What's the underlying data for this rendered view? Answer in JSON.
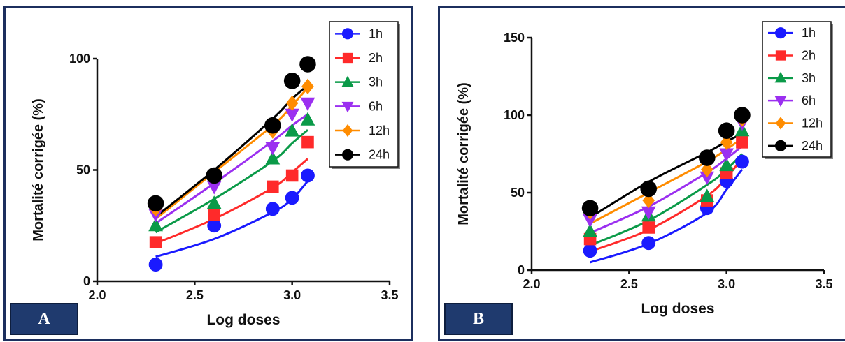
{
  "chart_data": [
    {
      "type": "scatter",
      "panel_label": "A",
      "xlabel": "Log doses",
      "ylabel": "Mortalité corrigée (%)",
      "xlim": [
        2.0,
        3.5
      ],
      "ylim": [
        0,
        100
      ],
      "x_ticks": [
        "2.0",
        "2.5",
        "3.0",
        "3.5"
      ],
      "y_ticks": [
        "0",
        "50",
        "100"
      ],
      "legend_position": "top-right",
      "x": [
        2.3,
        2.6,
        2.9,
        3.0,
        3.08
      ],
      "series": [
        {
          "name": "1h",
          "color": "#1a1aff",
          "marker": "circle",
          "values": [
            7.5,
            25,
            32.5,
            37.5,
            47.5
          ],
          "fit": [
            11,
            19,
            31,
            37,
            45
          ]
        },
        {
          "name": "2h",
          "color": "#ff2a2a",
          "marker": "square",
          "values": [
            17.5,
            30,
            42.5,
            47.5,
            62.5
          ],
          "fit": [
            17,
            28,
            42,
            49,
            55
          ]
        },
        {
          "name": "3h",
          "color": "#0a9a48",
          "marker": "triangle-up",
          "values": [
            25,
            35,
            55,
            67.5,
            72.5
          ],
          "fit": [
            22,
            37,
            54,
            62,
            68
          ]
        },
        {
          "name": "6h",
          "color": "#9b2ff0",
          "marker": "triangle-down",
          "values": [
            30,
            42.5,
            60,
            75,
            80
          ],
          "fit": [
            26,
            44,
            63,
            70,
            75
          ]
        },
        {
          "name": "12h",
          "color": "#ff8c00",
          "marker": "diamond",
          "values": [
            32.5,
            47.5,
            67.5,
            80,
            87.5
          ],
          "fit": [
            28,
            49,
            70,
            79,
            87
          ]
        },
        {
          "name": "24h",
          "color": "#000000",
          "marker": "circle",
          "values": [
            35,
            47.5,
            70,
            90,
            97.5
          ],
          "fit": [
            29,
            50,
            73,
            82,
            88
          ]
        }
      ]
    },
    {
      "type": "scatter",
      "panel_label": "B",
      "xlabel": "Log doses",
      "ylabel": "Mortalité corrigée (%)",
      "xlim": [
        2.0,
        3.5
      ],
      "ylim": [
        0,
        150
      ],
      "x_ticks": [
        "2.0",
        "2.5",
        "3.0",
        "3.5"
      ],
      "y_ticks": [
        "0",
        "50",
        "100",
        "150"
      ],
      "legend_position": "top-right",
      "x": [
        2.3,
        2.6,
        2.9,
        3.0,
        3.08
      ],
      "series": [
        {
          "name": "1h",
          "color": "#1a1aff",
          "marker": "circle",
          "values": [
            12.5,
            17.5,
            40,
            57.5,
            70
          ],
          "fit": [
            5,
            17,
            37,
            52,
            65
          ]
        },
        {
          "name": "2h",
          "color": "#ff2a2a",
          "marker": "square",
          "values": [
            20,
            27.5,
            45,
            62.5,
            82.5
          ],
          "fit": [
            12,
            26,
            48,
            60,
            72
          ]
        },
        {
          "name": "3h",
          "color": "#0a9a48",
          "marker": "triangle-up",
          "values": [
            25,
            35,
            47.5,
            67.5,
            90
          ],
          "fit": [
            16,
            32,
            55,
            65,
            75
          ]
        },
        {
          "name": "6h",
          "color": "#9b2ff0",
          "marker": "triangle-down",
          "values": [
            32.5,
            37.5,
            60,
            75,
            95
          ],
          "fit": [
            24,
            41,
            63,
            72,
            80
          ]
        },
        {
          "name": "12h",
          "color": "#ff8c00",
          "marker": "diamond",
          "values": [
            37.5,
            45,
            65,
            82.5,
            97.5
          ],
          "fit": [
            30,
            50,
            70,
            78,
            85
          ]
        },
        {
          "name": "24h",
          "color": "#000000",
          "marker": "circle",
          "values": [
            40,
            52.5,
            72.5,
            90,
            100
          ],
          "fit": [
            34,
            57,
            76,
            83,
            88
          ]
        }
      ]
    }
  ]
}
